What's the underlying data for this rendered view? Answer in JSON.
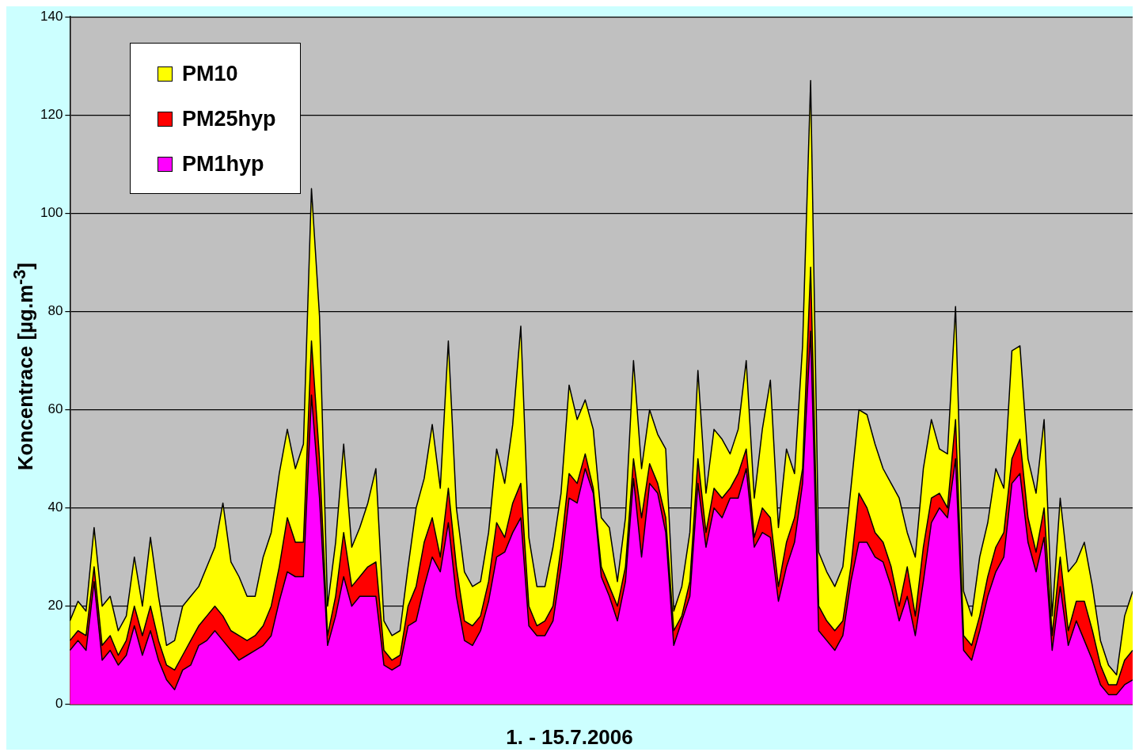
{
  "chart_data": {
    "type": "area",
    "xlabel": "1. - 15.7.2006",
    "ylabel": "Koncentrace [µg.m$^{-3}$]",
    "categories": [
      null,
      null,
      null,
      null,
      null,
      null,
      null,
      null,
      null,
      null,
      null,
      null,
      null,
      null,
      null,
      null,
      null,
      null,
      null,
      null,
      null,
      null,
      null,
      null,
      null,
      null,
      null,
      null,
      null,
      null,
      null,
      null,
      null,
      null,
      null,
      null,
      null,
      null,
      null,
      null,
      null,
      null,
      null,
      null,
      null,
      null,
      null,
      null,
      null,
      null,
      null,
      null,
      null,
      null,
      null,
      null,
      null,
      null,
      null,
      null,
      null,
      null,
      null,
      null,
      null,
      null,
      null,
      null,
      null,
      null,
      null,
      null,
      null,
      null,
      null,
      null,
      null,
      null,
      null,
      null,
      null,
      null,
      null,
      null,
      null,
      null,
      null,
      null,
      null,
      null,
      null,
      null,
      null,
      null,
      null,
      null,
      null,
      null,
      null,
      null,
      null,
      null,
      null,
      null,
      null,
      null,
      null,
      null,
      null,
      null,
      null,
      null,
      null,
      null,
      null,
      null,
      null,
      null,
      null,
      null,
      null,
      null,
      null,
      null,
      null,
      null,
      null,
      null,
      null,
      null,
      null,
      null,
      null
    ],
    "series": [
      {
        "name": "PM10",
        "color": "#ffff00",
        "values": [
          17,
          21,
          19,
          36,
          20,
          22,
          15,
          18,
          30,
          20,
          34,
          22,
          12,
          13,
          20,
          22,
          24,
          28,
          32,
          41,
          29,
          26,
          22,
          22,
          30,
          35,
          47,
          56,
          48,
          53,
          105,
          79,
          20,
          33,
          53,
          32,
          36,
          41,
          48,
          17,
          14,
          15,
          28,
          40,
          46,
          57,
          44,
          74,
          40,
          27,
          24,
          25,
          35,
          52,
          45,
          57,
          77,
          34,
          24,
          24,
          32,
          43,
          65,
          58,
          62,
          56,
          38,
          36,
          25,
          38,
          70,
          48,
          60,
          55,
          52,
          19,
          24,
          35,
          68,
          43,
          56,
          54,
          51,
          56,
          70,
          42,
          56,
          66,
          36,
          52,
          47,
          73,
          127,
          31,
          27,
          24,
          28,
          44,
          60,
          59,
          53,
          48,
          45,
          42,
          35,
          30,
          48,
          58,
          52,
          51,
          81,
          23,
          18,
          30,
          37,
          48,
          44,
          72,
          73,
          50,
          43,
          58,
          18,
          42,
          27,
          29,
          33,
          24,
          13,
          8,
          6,
          18,
          23
        ]
      },
      {
        "name": "PM25hyp",
        "color": "#ff0000",
        "values": [
          13,
          15,
          14,
          28,
          12,
          14,
          10,
          13,
          20,
          14,
          20,
          13,
          8,
          7,
          10,
          13,
          16,
          18,
          20,
          18,
          15,
          14,
          13,
          14,
          16,
          20,
          28,
          38,
          33,
          33,
          74,
          50,
          14,
          22,
          35,
          24,
          26,
          28,
          29,
          11,
          9,
          10,
          20,
          24,
          33,
          38,
          30,
          44,
          28,
          17,
          16,
          18,
          25,
          37,
          34,
          41,
          45,
          20,
          16,
          17,
          20,
          32,
          47,
          45,
          51,
          44,
          28,
          24,
          20,
          28,
          50,
          38,
          49,
          45,
          38,
          15,
          18,
          25,
          50,
          35,
          44,
          42,
          44,
          47,
          52,
          34,
          40,
          38,
          24,
          33,
          38,
          48,
          89,
          20,
          17,
          15,
          17,
          28,
          43,
          40,
          35,
          33,
          28,
          20,
          28,
          18,
          32,
          42,
          43,
          40,
          58,
          14,
          12,
          18,
          26,
          32,
          35,
          50,
          54,
          38,
          31,
          40,
          14,
          30,
          15,
          21,
          21,
          15,
          8,
          4,
          4,
          9,
          11
        ]
      },
      {
        "name": "PM1hyp",
        "color": "#ff00ff",
        "values": [
          11,
          13,
          11,
          25,
          9,
          11,
          8,
          10,
          16,
          10,
          15,
          9,
          5,
          3,
          7,
          8,
          12,
          13,
          15,
          13,
          11,
          9,
          10,
          11,
          12,
          14,
          21,
          27,
          26,
          26,
          63,
          42,
          12,
          18,
          26,
          20,
          22,
          22,
          22,
          8,
          7,
          8,
          16,
          17,
          24,
          30,
          27,
          37,
          22,
          13,
          12,
          15,
          21,
          30,
          31,
          35,
          38,
          16,
          14,
          14,
          17,
          28,
          42,
          41,
          48,
          43,
          26,
          22,
          17,
          25,
          46,
          30,
          45,
          43,
          35,
          12,
          17,
          22,
          45,
          32,
          40,
          38,
          42,
          42,
          48,
          32,
          35,
          34,
          21,
          28,
          33,
          45,
          76,
          15,
          13,
          11,
          14,
          25,
          33,
          33,
          30,
          29,
          24,
          17,
          22,
          14,
          25,
          37,
          40,
          38,
          50,
          11,
          9,
          15,
          22,
          27,
          30,
          45,
          47,
          33,
          27,
          34,
          11,
          24,
          12,
          17,
          13,
          9,
          4,
          2,
          2,
          4,
          5
        ]
      }
    ],
    "ylim": [
      0,
      140
    ],
    "yticks": [
      0,
      20,
      40,
      60,
      80,
      100,
      120,
      140
    ],
    "grid": "y",
    "legend": "top left",
    "marker": "none",
    "line_style": "solid"
  }
}
